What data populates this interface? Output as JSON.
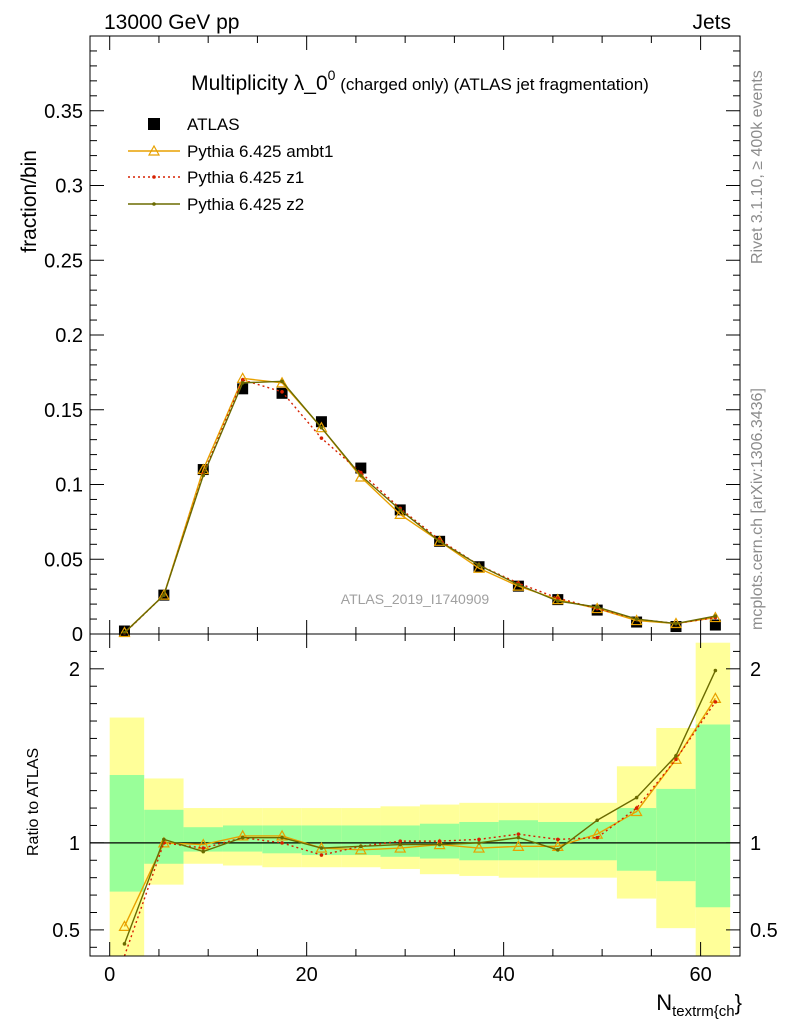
{
  "header": {
    "left": "13000 GeV pp",
    "right": "Jets"
  },
  "side_labels": {
    "top": "Rivet 3.1.10, ≥ 400k events",
    "bottom": "mcplots.cern.ch [arXiv:1306.3436]"
  },
  "watermark": "ATLAS_2019_I1740909",
  "chart_data": [
    {
      "type": "line",
      "title_main": "Multiplicity λ_0",
      "title_sup": "0",
      "title_rest": " (charged only) (ATLAS jet fragmentation)",
      "ylabel": "fraction/bin",
      "xlim": [
        -2,
        64
      ],
      "ylim": [
        0,
        0.4
      ],
      "yticks": [
        0,
        0.05,
        0.1,
        0.15,
        0.2,
        0.25,
        0.3,
        0.35
      ],
      "ytick_labels": [
        "0",
        "0.05",
        "0.1",
        "0.15",
        "0.2",
        "0.25",
        "0.3",
        "0.35"
      ],
      "legend_position": "top-left",
      "x": [
        1.5,
        5.5,
        9.5,
        13.5,
        17.5,
        21.5,
        25.5,
        29.5,
        33.5,
        37.5,
        41.5,
        45.5,
        49.5,
        53.5,
        57.5,
        61.5
      ],
      "series": [
        {
          "name": "ATLAS",
          "color": "#000000",
          "marker": "square",
          "values": [
            0.002,
            0.026,
            0.11,
            0.164,
            0.161,
            0.142,
            0.111,
            0.083,
            0.062,
            0.045,
            0.032,
            0.023,
            0.016,
            0.008,
            0.005,
            0.006
          ]
        },
        {
          "name": "Pythia 6.425 ambt1",
          "color": "#e8a100",
          "marker": "triangle",
          "dash": "",
          "values": [
            0.001,
            0.026,
            0.11,
            0.171,
            0.168,
            0.138,
            0.105,
            0.08,
            0.062,
            0.044,
            0.032,
            0.023,
            0.017,
            0.009,
            0.007,
            0.011
          ]
        },
        {
          "name": "Pythia 6.425 z1",
          "color": "#d62000",
          "marker": "dot",
          "dash": "2,3",
          "values": [
            0.0005,
            0.026,
            0.107,
            0.17,
            0.162,
            0.131,
            0.108,
            0.084,
            0.063,
            0.046,
            0.034,
            0.024,
            0.017,
            0.01,
            0.007,
            0.011
          ]
        },
        {
          "name": "Pythia 6.425 z2",
          "color": "#6b6b00",
          "marker": "dot",
          "dash": "",
          "values": [
            0.0008,
            0.026,
            0.106,
            0.168,
            0.169,
            0.138,
            0.106,
            0.083,
            0.062,
            0.046,
            0.033,
            0.022,
            0.018,
            0.01,
            0.007,
            0.012
          ]
        }
      ]
    },
    {
      "type": "line",
      "ylabel": "Ratio to ATLAS",
      "xlabel_main": "N",
      "xlabel_sub": "textrm{ch",
      "xlabel_tail": "}",
      "xlim": [
        -2,
        64
      ],
      "ylim": [
        0.35,
        2.2
      ],
      "xticks": [
        0,
        20,
        40,
        60
      ],
      "xtick_labels": [
        "0",
        "20",
        "40",
        "60"
      ],
      "yticks": [
        0.5,
        1,
        2
      ],
      "ytick_labels": [
        "0.5",
        "1",
        "2"
      ],
      "bands": {
        "bin_edges": [
          0,
          3.5,
          7.5,
          11.5,
          15.5,
          19.5,
          23.5,
          27.5,
          31.5,
          35.5,
          39.5,
          43.5,
          47.5,
          51.5,
          55.5,
          59.5,
          63
        ],
        "yellow_lo": [
          0.25,
          0.76,
          0.88,
          0.87,
          0.86,
          0.86,
          0.86,
          0.85,
          0.82,
          0.81,
          0.8,
          0.8,
          0.8,
          0.68,
          0.51,
          0.3
        ],
        "yellow_hi": [
          1.72,
          1.37,
          1.2,
          1.2,
          1.2,
          1.2,
          1.2,
          1.21,
          1.22,
          1.23,
          1.23,
          1.23,
          1.23,
          1.44,
          1.66,
          2.15
        ],
        "green_lo": [
          0.72,
          0.88,
          0.95,
          0.95,
          0.94,
          0.93,
          0.93,
          0.92,
          0.91,
          0.9,
          0.9,
          0.9,
          0.9,
          0.84,
          0.78,
          0.63
        ],
        "green_hi": [
          1.39,
          1.19,
          1.09,
          1.1,
          1.1,
          1.1,
          1.1,
          1.1,
          1.11,
          1.12,
          1.13,
          1.12,
          1.12,
          1.2,
          1.31,
          1.68
        ]
      },
      "x": [
        1.5,
        5.5,
        9.5,
        13.5,
        17.5,
        21.5,
        25.5,
        29.5,
        33.5,
        37.5,
        41.5,
        45.5,
        49.5,
        53.5,
        57.5,
        61.5
      ],
      "series": [
        {
          "name": "Pythia 6.425 ambt1",
          "color": "#e8a100",
          "marker": "triangle",
          "dash": "",
          "values": [
            0.52,
            1.0,
            0.99,
            1.04,
            1.04,
            0.97,
            0.96,
            0.97,
            0.99,
            0.97,
            0.98,
            0.98,
            1.05,
            1.18,
            1.48,
            1.83
          ]
        },
        {
          "name": "Pythia 6.425 z1",
          "color": "#d62000",
          "marker": "dot",
          "dash": "2,3",
          "values": [
            0.3,
            1.0,
            0.97,
            1.03,
            1.0,
            0.93,
            0.98,
            1.01,
            1.01,
            1.02,
            1.05,
            1.02,
            1.03,
            1.2,
            1.48,
            1.81
          ]
        },
        {
          "name": "Pythia 6.425 z2",
          "color": "#6b6b00",
          "marker": "dot",
          "dash": "",
          "values": [
            0.42,
            1.02,
            0.95,
            1.03,
            1.03,
            0.97,
            0.98,
            0.99,
            0.99,
            1.0,
            1.03,
            0.96,
            1.13,
            1.26,
            1.5,
            1.99
          ]
        }
      ]
    }
  ]
}
